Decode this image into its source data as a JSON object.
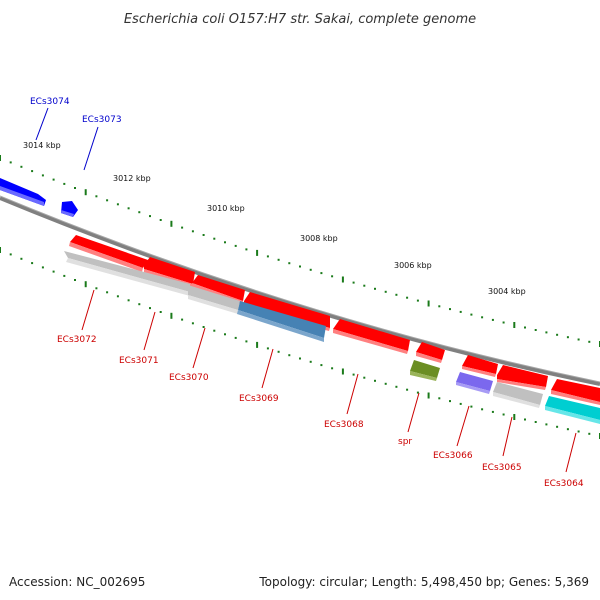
{
  "title": "Escherichia coli O157:H7 str. Sakai, complete genome",
  "footer": {
    "accession": "Accession: NC_002695",
    "summary": "Topology: circular; Length: 5,498,450 bp; Genes: 5,369"
  },
  "colors": {
    "forward_label": "#0000cc",
    "reverse_label": "#cc0000",
    "tick": "#1a7a1a",
    "backbone": "#808080"
  },
  "ruler_ticks": [
    "3014 kbp",
    "3012 kbp",
    "3010 kbp",
    "3008 kbp",
    "3006 kbp",
    "3004 kbp"
  ],
  "genes": [
    {
      "id": "ECs3074",
      "label": "ECs3074",
      "strand": "forward",
      "color": "#0000ff"
    },
    {
      "id": "ECs3073",
      "label": "ECs3073",
      "strand": "forward",
      "color": "#0000ff"
    },
    {
      "id": "ECs3072",
      "label": "ECs3072",
      "strand": "reverse",
      "color": "#ff0000",
      "feature_color": "#c0c0c0"
    },
    {
      "id": "ECs3071",
      "label": "ECs3071",
      "strand": "reverse",
      "color": "#ff0000",
      "feature_color": "#c0c0c0"
    },
    {
      "id": "ECs3070",
      "label": "ECs3070",
      "strand": "reverse",
      "color": "#ff0000",
      "feature_color": "#c0c0c0"
    },
    {
      "id": "ECs3069",
      "label": "ECs3069",
      "strand": "reverse",
      "color": "#ff0000",
      "feature_color": "#4682b4"
    },
    {
      "id": "ECs3068",
      "label": "ECs3068",
      "strand": "reverse",
      "color": "#ff0000"
    },
    {
      "id": "spr",
      "label": "spr",
      "strand": "reverse",
      "color": "#ff0000",
      "feature_color": "#6b8e23"
    },
    {
      "id": "ECs3066",
      "label": "ECs3066",
      "strand": "reverse",
      "color": "#ff0000",
      "feature_color": "#7b68ee"
    },
    {
      "id": "ECs3065",
      "label": "ECs3065",
      "strand": "reverse",
      "color": "#ff0000",
      "feature_color": "#c0c0c0"
    },
    {
      "id": "ECs3064",
      "label": "ECs3064",
      "strand": "reverse",
      "color": "#ff0000",
      "feature_color": "#00ced1"
    }
  ]
}
